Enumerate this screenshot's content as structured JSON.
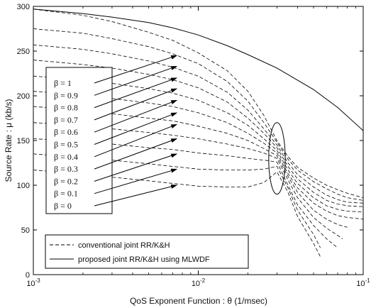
{
  "chart_data": {
    "type": "line",
    "title": "",
    "xlabel": "QoS Exponent Function : θ (1/msec)",
    "ylabel": "Source Rate : μ (kb/s)",
    "xscale": "log",
    "xlim": [
      0.001,
      0.1
    ],
    "ylim": [
      0,
      300
    ],
    "x_ticks": [
      {
        "value": 0.001,
        "base": "10",
        "exp": "-3"
      },
      {
        "value": 0.01,
        "base": "10",
        "exp": "-2"
      },
      {
        "value": 0.1,
        "base": "10",
        "exp": "-1"
      }
    ],
    "y_ticks": [
      0,
      50,
      100,
      150,
      200,
      250,
      300
    ],
    "grid": false,
    "legend_position": "bottom-left",
    "legend": [
      {
        "label": "conventional joint RR/K&H",
        "style": "dashed"
      },
      {
        "label": "proposed joint RR/K&H using MLWDF",
        "style": "solid"
      }
    ],
    "beta_box": {
      "labels": [
        "β = 1",
        "β = 0.9",
        "β = 0.8",
        "β = 0.7",
        "β = 0.6",
        "β = 0.5",
        "β = 0.4",
        "β = 0.3",
        "β = 0.2",
        "β = 0.1",
        "β = 0"
      ],
      "arrow_targets": [
        {
          "x": 0.011,
          "y": 245
        },
        {
          "x": 0.011,
          "y": 233
        },
        {
          "x": 0.011,
          "y": 220
        },
        {
          "x": 0.011,
          "y": 208
        },
        {
          "x": 0.011,
          "y": 195
        },
        {
          "x": 0.011,
          "y": 181
        },
        {
          "x": 0.011,
          "y": 168
        },
        {
          "x": 0.011,
          "y": 152
        },
        {
          "x": 0.011,
          "y": 135
        },
        {
          "x": 0.011,
          "y": 118
        },
        {
          "x": 0.011,
          "y": 100
        }
      ]
    },
    "ellipse_annotation": {
      "cx": 0.03,
      "cy": 130,
      "rx_decades": 0.05,
      "ry": 40
    },
    "series": [
      {
        "name": "proposed joint RR/K&H using MLWDF",
        "style": "solid",
        "x": [
          0.001,
          0.002,
          0.003,
          0.005,
          0.007,
          0.01,
          0.015,
          0.02,
          0.03,
          0.05,
          0.07,
          0.1
        ],
        "y": [
          297,
          292,
          288,
          282,
          276,
          268,
          256,
          246,
          231,
          207,
          187,
          161
        ]
      },
      {
        "name": "β = 1",
        "style": "dashed",
        "x": [
          0.001,
          0.002,
          0.003,
          0.005,
          0.007,
          0.01,
          0.015,
          0.02,
          0.025,
          0.03,
          0.035,
          0.04,
          0.05,
          0.06,
          0.07,
          0.08,
          0.1
        ],
        "y": [
          297,
          290,
          283,
          271,
          262,
          248,
          228,
          205,
          178,
          150,
          132,
          120,
          108,
          100,
          95,
          91,
          86
        ]
      },
      {
        "name": "β = 0.9",
        "style": "dashed",
        "x": [
          0.001,
          0.002,
          0.003,
          0.005,
          0.007,
          0.01,
          0.015,
          0.02,
          0.025,
          0.03,
          0.035,
          0.04,
          0.05,
          0.06,
          0.07,
          0.08,
          0.1
        ],
        "y": [
          275,
          270,
          264,
          255,
          247,
          236,
          216,
          194,
          170,
          148,
          129,
          117,
          104,
          96,
          90,
          86,
          83
        ]
      },
      {
        "name": "β = 0.8",
        "style": "dashed",
        "x": [
          0.001,
          0.002,
          0.003,
          0.005,
          0.007,
          0.01,
          0.015,
          0.02,
          0.025,
          0.03,
          0.035,
          0.04,
          0.05,
          0.06,
          0.07,
          0.08,
          0.1
        ],
        "y": [
          257,
          252,
          247,
          239,
          232,
          222,
          204,
          184,
          163,
          145,
          125,
          112,
          98,
          89,
          84,
          81,
          80
        ]
      },
      {
        "name": "β = 0.7",
        "style": "dashed",
        "x": [
          0.001,
          0.002,
          0.003,
          0.005,
          0.007,
          0.01,
          0.015,
          0.02,
          0.025,
          0.03,
          0.035,
          0.04,
          0.05,
          0.06,
          0.07,
          0.08,
          0.1
        ],
        "y": [
          240,
          235,
          231,
          224,
          218,
          209,
          193,
          175,
          158,
          142,
          121,
          107,
          92,
          83,
          79,
          77,
          76
        ]
      },
      {
        "name": "β = 0.6",
        "style": "dashed",
        "x": [
          0.001,
          0.002,
          0.003,
          0.005,
          0.007,
          0.01,
          0.015,
          0.02,
          0.025,
          0.03,
          0.035,
          0.04,
          0.05,
          0.06,
          0.07,
          0.08,
          0.1
        ],
        "y": [
          222,
          218,
          214,
          208,
          203,
          195,
          181,
          167,
          152,
          139,
          117,
          102,
          86,
          77,
          73,
          71,
          70
        ]
      },
      {
        "name": "β = 0.5",
        "style": "dashed",
        "x": [
          0.001,
          0.002,
          0.003,
          0.005,
          0.007,
          0.01,
          0.015,
          0.02,
          0.025,
          0.03,
          0.035,
          0.04,
          0.05,
          0.06,
          0.07,
          0.08,
          0.1
        ],
        "y": [
          205,
          201,
          197,
          192,
          188,
          181,
          170,
          158,
          147,
          136,
          113,
          97,
          80,
          71,
          66,
          64,
          62
        ]
      },
      {
        "name": "β = 0.4",
        "style": "dashed",
        "x": [
          0.001,
          0.002,
          0.003,
          0.005,
          0.007,
          0.01,
          0.015,
          0.02,
          0.025,
          0.03,
          0.035,
          0.04,
          0.05,
          0.06,
          0.07,
          0.08
        ],
        "y": [
          188,
          184,
          180,
          175,
          172,
          166,
          158,
          150,
          141,
          133,
          110,
          92,
          72,
          62,
          56,
          53
        ]
      },
      {
        "name": "β = 0.3",
        "style": "dashed",
        "x": [
          0.001,
          0.002,
          0.003,
          0.005,
          0.007,
          0.01,
          0.015,
          0.02,
          0.025,
          0.03,
          0.035,
          0.04,
          0.05,
          0.06,
          0.07,
          0.075
        ],
        "y": [
          170,
          167,
          163,
          159,
          156,
          152,
          146,
          141,
          136,
          130,
          106,
          86,
          64,
          52,
          44,
          40
        ]
      },
      {
        "name": "β = 0.2",
        "style": "dashed",
        "x": [
          0.001,
          0.002,
          0.003,
          0.005,
          0.007,
          0.01,
          0.015,
          0.02,
          0.025,
          0.03,
          0.035,
          0.04,
          0.05,
          0.06,
          0.07
        ],
        "y": [
          152,
          149,
          146,
          142,
          140,
          136,
          133,
          130,
          128,
          126,
          100,
          78,
          55,
          40,
          30
        ]
      },
      {
        "name": "β = 0.1",
        "style": "dashed",
        "x": [
          0.001,
          0.002,
          0.003,
          0.005,
          0.007,
          0.01,
          0.015,
          0.02,
          0.025,
          0.03,
          0.035,
          0.04,
          0.05,
          0.055
        ],
        "y": [
          135,
          131,
          128,
          124,
          121,
          118,
          117,
          117,
          118,
          121,
          97,
          72,
          45,
          30
        ]
      },
      {
        "name": "β = 0",
        "style": "dashed",
        "x": [
          0.001,
          0.002,
          0.003,
          0.005,
          0.007,
          0.01,
          0.015,
          0.02,
          0.025,
          0.03,
          0.035,
          0.04,
          0.05,
          0.055
        ],
        "y": [
          117,
          113,
          109,
          105,
          102,
          99,
          98,
          98,
          103,
          115,
          92,
          65,
          35,
          20
        ]
      }
    ]
  }
}
